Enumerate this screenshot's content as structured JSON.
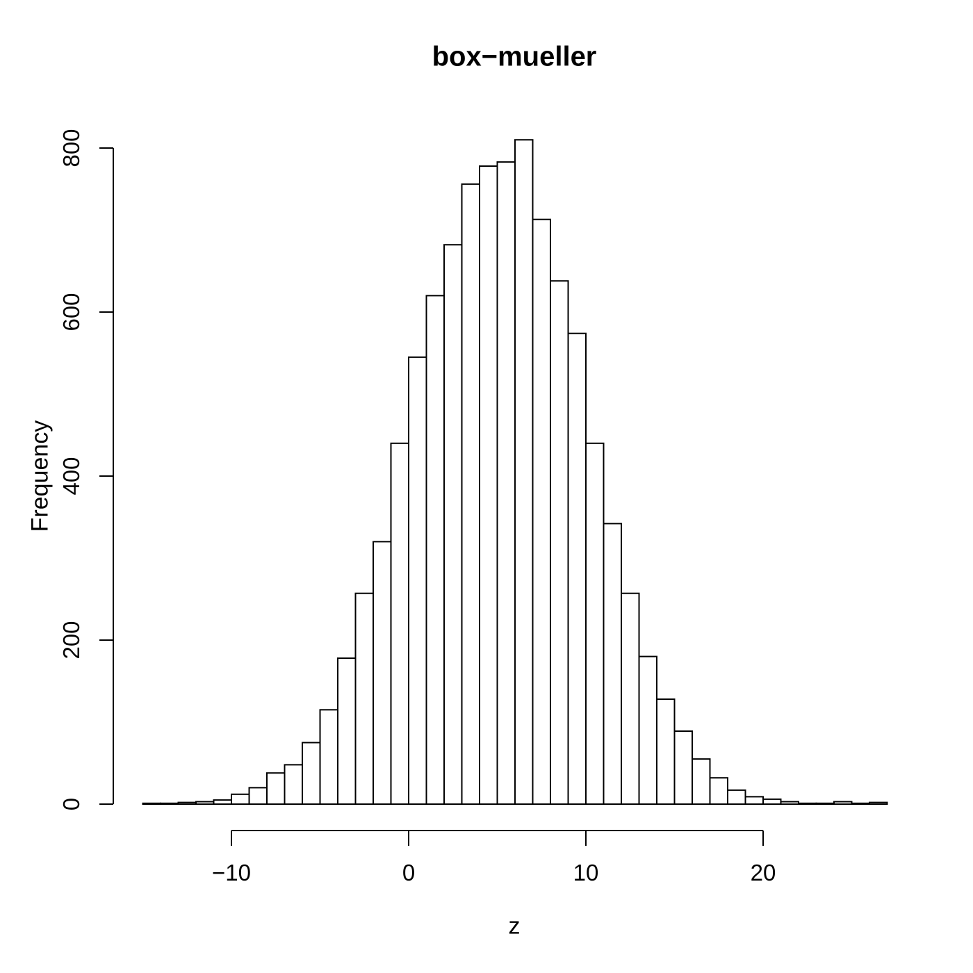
{
  "chart_data": {
    "type": "bar",
    "subtype": "histogram",
    "title": "box−mueller",
    "xlabel": "z",
    "ylabel": "Frequency",
    "bin_start": -15,
    "bin_width": 1,
    "counts": [
      1,
      1,
      2,
      3,
      5,
      12,
      20,
      38,
      48,
      75,
      115,
      178,
      257,
      320,
      440,
      545,
      620,
      682,
      756,
      778,
      783,
      810,
      713,
      638,
      574,
      440,
      342,
      257,
      180,
      128,
      89,
      55,
      32,
      17,
      9,
      6,
      3,
      1,
      1,
      3,
      1,
      2
    ],
    "xlim": [
      -15,
      27
    ],
    "ylim": [
      0,
      810
    ],
    "x_ticks": [
      -10,
      0,
      10,
      20
    ],
    "x_tick_labels": [
      "−10",
      "0",
      "10",
      "20"
    ],
    "y_ticks": [
      0,
      200,
      400,
      600,
      800
    ],
    "y_tick_labels": [
      "0",
      "200",
      "400",
      "600",
      "800"
    ],
    "bar_fill": "#ffffff",
    "bar_stroke": "#000000",
    "axis_color": "#000000",
    "background": "#ffffff",
    "grid": false,
    "legend": false
  }
}
